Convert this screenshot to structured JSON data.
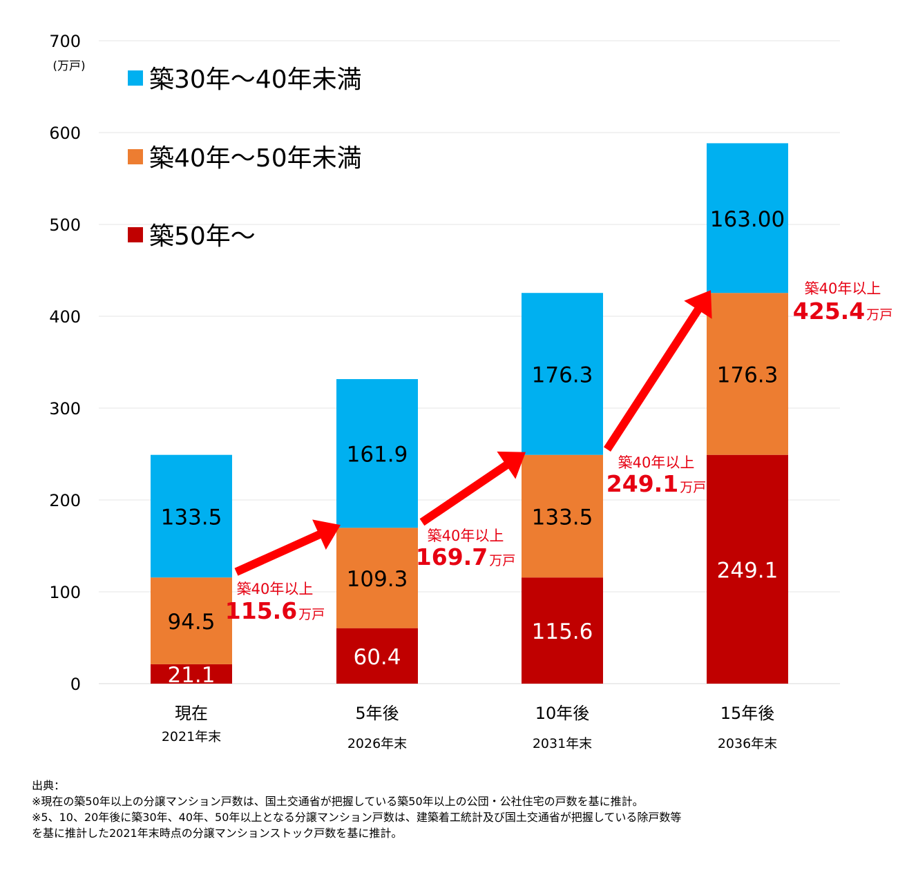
{
  "chart_data": {
    "type": "bar",
    "stacked": true,
    "categories": [
      "現在",
      "5年後",
      "10年後",
      "15年後"
    ],
    "sub_categories": [
      "2021年末",
      "2026年末",
      "2031年末",
      "2036年末"
    ],
    "unit": "(万戸)",
    "ylim": [
      0,
      700
    ],
    "yticks": [
      "0",
      "100",
      "200",
      "300",
      "400",
      "500",
      "600",
      "700"
    ],
    "grid": true,
    "legend_position": "top-left",
    "series": [
      {
        "name": "築50年〜",
        "color": "#c00000",
        "label_color": "#ffffff",
        "values": [
          21.1,
          60.4,
          115.6,
          249.1
        ],
        "labels": [
          "21.1",
          "60.4",
          "115.6",
          "249.1"
        ]
      },
      {
        "name": "築40年〜50年未満",
        "color": "#ed7d31",
        "label_color": "#000000",
        "values": [
          94.5,
          109.3,
          133.5,
          176.3
        ],
        "labels": [
          "94.5",
          "109.3",
          "133.5",
          "176.3"
        ]
      },
      {
        "name": "築30年〜40年未満",
        "color": "#00b0f0",
        "label_color": "#000000",
        "values": [
          133.5,
          161.9,
          176.3,
          163.0
        ],
        "labels": [
          "133.5",
          "161.9",
          "176.3",
          "163.00"
        ]
      }
    ],
    "legend_order": [
      "築30年〜40年未満",
      "築40年〜50年未満",
      "築50年〜"
    ],
    "annotations": [
      {
        "label": "築40年以上",
        "value": "115.6",
        "unit": "万戸"
      },
      {
        "label": "築40年以上",
        "value": "169.7",
        "unit": "万戸"
      },
      {
        "label": "築40年以上",
        "value": "249.1",
        "unit": "万戸"
      },
      {
        "label": "築40年以上",
        "value": "425.4",
        "unit": "万戸"
      }
    ],
    "arrow_color": "#ff0000",
    "annotation_color": "#e60012"
  },
  "notes": {
    "title": "出典：",
    "lines": [
      "※現在の築50年以上の分譲マンション戸数は、国土交通省が把握している築50年以上の公団・公社住宅の戸数を基に推計。",
      "※5、10、20年後に築30年、40年、50年以上となる分譲マンション戸数は、建築着工統計及び国土交通省が把握している除戸数等",
      "を基に推計した2021年末時点の分譲マンションストック戸数を基に推計。"
    ]
  }
}
